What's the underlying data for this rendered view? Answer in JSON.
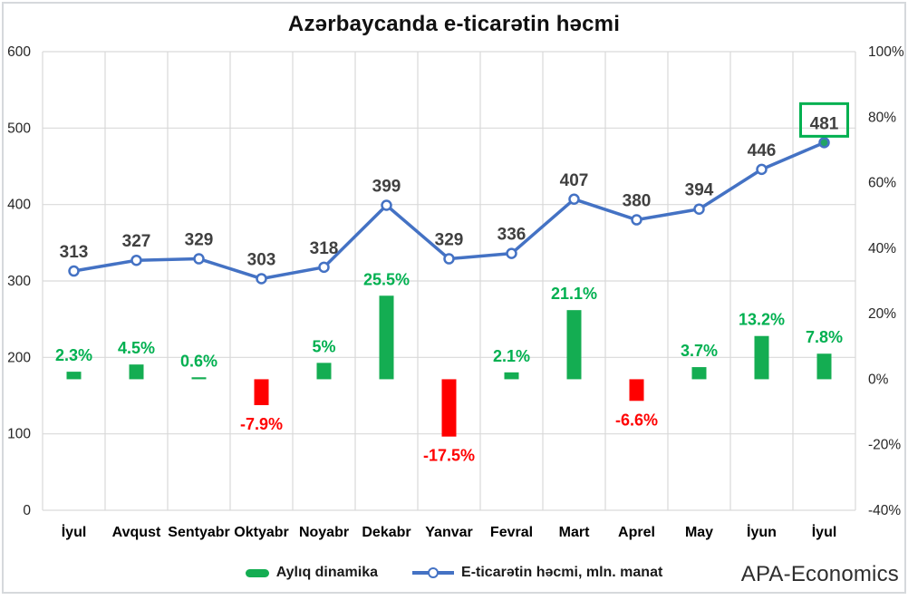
{
  "title": "Azərbaycanda e-ticarətin həcmi",
  "branding": "APA-Economics",
  "legend": [
    {
      "label": "Aylıq dinamika",
      "type": "bar"
    },
    {
      "label": "E-ticarətin həcmi, mln. manat",
      "type": "line"
    }
  ],
  "colors": {
    "line": "#4472C4",
    "marker_fill": "#FFFFFF",
    "last_marker_fill": "#21A366",
    "bar_positive": "#14AD52",
    "bar_negative": "#FF0000",
    "label_positive": "#00B050",
    "label_negative": "#FF0000",
    "value_label": "#404040",
    "grid": "#D9D9D9",
    "axis_text": "#262626",
    "x_label_text": "#000000",
    "highlight_box": "#00B050"
  },
  "chart_data": {
    "type": "combo",
    "categories": [
      "İyul",
      "Avqust",
      "Sentyabr",
      "Oktyabr",
      "Noyabr",
      "Dekabr",
      "Yanvar",
      "Fevral",
      "Mart",
      "Aprel",
      "May",
      "İyun",
      "İyul"
    ],
    "series": [
      {
        "name": "Aylıq dinamika",
        "type": "bar",
        "axis": "right",
        "unit": "%",
        "values": [
          2.3,
          4.5,
          0.6,
          -7.9,
          5,
          25.5,
          -17.5,
          2.1,
          21.1,
          -6.6,
          3.7,
          13.2,
          7.8
        ],
        "labels": [
          "2.3%",
          "4.5%",
          "0.6%",
          "-7.9%",
          "5%",
          "25.5%",
          "-17.5%",
          "2.1%",
          "21.1%",
          "-6.6%",
          "3.7%",
          "13.2%",
          "7.8%"
        ]
      },
      {
        "name": "E-ticarətin həcmi, mln. manat",
        "type": "line",
        "axis": "left",
        "values": [
          313,
          327,
          329,
          303,
          318,
          399,
          329,
          336,
          407,
          380,
          394,
          446,
          481
        ],
        "labels": [
          "313",
          "327",
          "329",
          "303",
          "318",
          "399",
          "329",
          "336",
          "407",
          "380",
          "394",
          "446",
          "481"
        ],
        "highlighted_point_label": "481",
        "highlighted_point_index": 12
      }
    ],
    "left_axis": {
      "min": 0,
      "max": 600,
      "step": 100,
      "tick_labels": [
        "0",
        "100",
        "200",
        "300",
        "400",
        "500",
        "600"
      ]
    },
    "right_axis": {
      "min": -40,
      "max": 100,
      "step": 20,
      "tick_labels": [
        "-40%",
        "-20%",
        "0%",
        "20%",
        "40%",
        "60%",
        "80%",
        "100%"
      ]
    },
    "grid": true,
    "legend_position": "bottom"
  }
}
